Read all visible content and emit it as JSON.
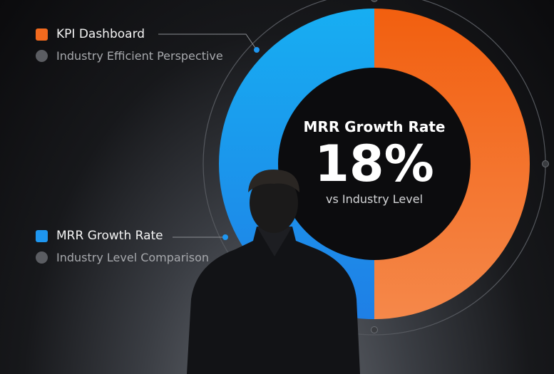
{
  "chart_data": {
    "type": "pie",
    "segments": [
      {
        "label": "KPI Dashboard",
        "value": 50,
        "color": "#f26a1e"
      },
      {
        "label": "MRR Growth Rate",
        "value": 50,
        "color": "#1e96f0"
      }
    ]
  },
  "legend": [
    {
      "label": "KPI Dashboard",
      "sub": "Industry Efficient Perspective",
      "color": "#f26a1e"
    },
    {
      "label": "MRR Growth Rate",
      "sub": "Industry Level Comparison",
      "color": "#1e96f0"
    }
  ],
  "center": {
    "title": "MRR Growth Rate",
    "value": "18%",
    "subtitle": "vs Industry Level"
  }
}
